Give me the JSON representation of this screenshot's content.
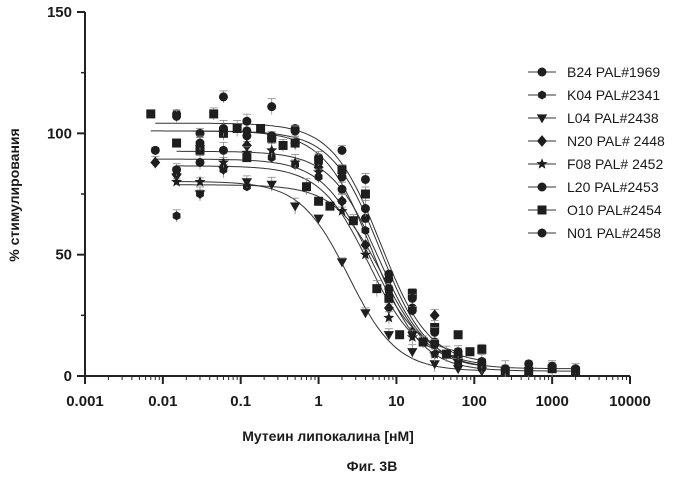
{
  "caption": "Фиг. 3B",
  "chart_data": {
    "type": "scatter",
    "xscale": "log",
    "xlim": [
      0.001,
      10000
    ],
    "ylim": [
      0,
      150
    ],
    "xticks": [
      "0.001",
      "0.01",
      "0.1",
      "1",
      "10",
      "100",
      "1000",
      "10000"
    ],
    "yticks": [
      "0",
      "50",
      "100",
      "150"
    ],
    "xlabel": "Мутеин липокалина [нМ]",
    "ylabel": "% стимулирования",
    "legend_position": "right",
    "grid": false,
    "series": [
      {
        "name": "B24 PAL#1969",
        "marker": "circle",
        "x": [
          0.008,
          0.015,
          0.03,
          0.06,
          0.12,
          0.25,
          0.5,
          1,
          2,
          4,
          8,
          16,
          31,
          62,
          125
        ],
        "y": [
          93,
          108,
          100,
          115,
          105,
          111,
          102,
          88,
          93,
          81,
          40,
          28,
          14,
          7,
          5
        ]
      },
      {
        "name": "K04 PAL#2341",
        "marker": "hexagon",
        "x": [
          0.015,
          0.03,
          0.06,
          0.12,
          0.25,
          0.5,
          1,
          2,
          4,
          8,
          16,
          31,
          62,
          125
        ],
        "y": [
          66,
          75,
          85,
          78,
          90,
          87,
          82,
          72,
          60,
          35,
          18,
          9,
          5,
          3
        ]
      },
      {
        "name": "L04 PAL#2438",
        "marker": "triangle-down",
        "x": [
          0.015,
          0.03,
          0.06,
          0.12,
          0.25,
          0.5,
          1,
          2,
          4,
          8,
          16,
          31,
          62,
          125
        ],
        "y": [
          82,
          75,
          85,
          80,
          79,
          70,
          65,
          47,
          26,
          17,
          10,
          5,
          3,
          2
        ]
      },
      {
        "name": "N20 PAL# 2448",
        "marker": "diamond",
        "x": [
          0.008,
          0.015,
          0.03,
          0.06,
          0.12,
          0.25,
          0.5,
          1,
          2,
          4,
          8,
          16,
          31,
          62
        ],
        "y": [
          88,
          83,
          95,
          86,
          95,
          98,
          96,
          86,
          72,
          54,
          28,
          18,
          25,
          8
        ]
      },
      {
        "name": "F08 PAL# 2452",
        "marker": "star",
        "x": [
          0.015,
          0.03,
          0.06,
          0.12,
          0.25,
          0.5,
          1,
          2,
          4,
          8,
          16,
          31,
          62
        ],
        "y": [
          80,
          80,
          88,
          92,
          93,
          88,
          84,
          68,
          50,
          24,
          16,
          9,
          6
        ]
      },
      {
        "name": "L20 PAL#2453",
        "marker": "circle",
        "x": [
          0.015,
          0.03,
          0.06,
          0.12,
          0.25,
          0.5,
          1,
          2,
          4,
          8,
          16,
          31,
          62,
          125
        ],
        "y": [
          85,
          88,
          93,
          99,
          98,
          101,
          90,
          82,
          65,
          36,
          27,
          13,
          9,
          4
        ]
      },
      {
        "name": "O10 PAL#2454",
        "marker": "square",
        "x": [
          0.007,
          0.015,
          0.03,
          0.045,
          0.06,
          0.09,
          0.12,
          0.18,
          0.25,
          0.35,
          0.5,
          0.7,
          1,
          1.4,
          2,
          2.8,
          4,
          5.6,
          8,
          11,
          16,
          22,
          31,
          44,
          62,
          88,
          125,
          250,
          500,
          1000,
          2000
        ],
        "y": [
          108,
          96,
          93,
          108,
          100,
          102,
          90,
          102,
          98,
          95,
          96,
          78,
          72,
          70,
          85,
          64,
          75,
          36,
          32,
          17,
          34,
          14,
          20,
          9,
          17,
          10,
          11,
          2,
          2,
          3,
          2
        ]
      },
      {
        "name": "N01 PAL#2458",
        "marker": "circle",
        "x": [
          0.015,
          0.03,
          0.06,
          0.12,
          0.25,
          0.5,
          1,
          2,
          4,
          8,
          16,
          31,
          62,
          125,
          250,
          500,
          1000,
          2000
        ],
        "y": [
          107,
          96,
          102,
          101,
          99,
          101,
          89,
          77,
          69,
          42,
          32,
          18,
          10,
          6,
          3,
          5,
          4,
          3
        ]
      }
    ]
  }
}
